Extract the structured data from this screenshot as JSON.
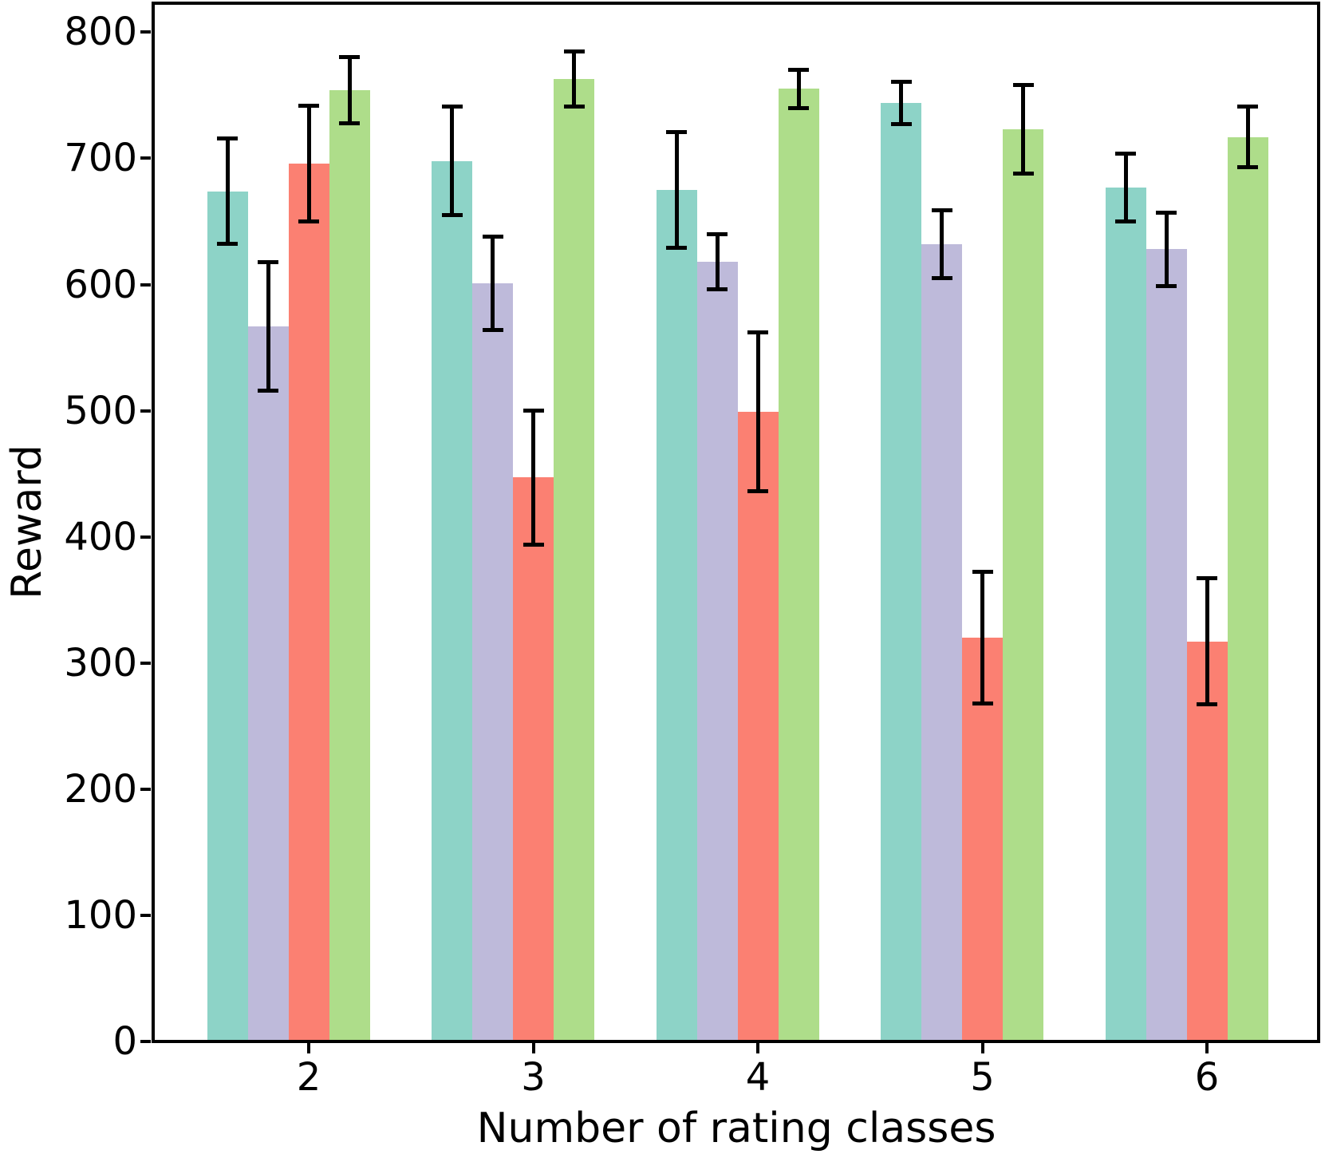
{
  "chart_data": {
    "type": "bar",
    "title": "",
    "xlabel": "Number of rating classes",
    "ylabel": "Reward",
    "categories": [
      "2",
      "3",
      "4",
      "5",
      "6"
    ],
    "y_ticks": [
      0,
      100,
      200,
      300,
      400,
      500,
      600,
      700,
      800
    ],
    "ylim": [
      0,
      823
    ],
    "grid": false,
    "legend": "none",
    "background_color": "#ffffff",
    "spine_color": "#000000",
    "error_bar_color": "#000000",
    "series": [
      {
        "name": "teal",
        "color": "#8dd3c7",
        "values": [
          674,
          698,
          675,
          744,
          677
        ],
        "errors": [
          42,
          43,
          46,
          17,
          27
        ]
      },
      {
        "name": "lavender",
        "color": "#bebada",
        "values": [
          567,
          601,
          618,
          632,
          628
        ],
        "errors": [
          51,
          37,
          22,
          27,
          29
        ]
      },
      {
        "name": "salmon",
        "color": "#fb8072",
        "values": [
          696,
          447,
          499,
          320,
          317
        ],
        "errors": [
          46,
          53,
          63,
          52,
          50
        ]
      },
      {
        "name": "green",
        "color": "#aedd8a",
        "values": [
          754,
          763,
          755,
          723,
          717
        ],
        "errors": [
          26,
          22,
          15,
          35,
          24
        ]
      }
    ]
  }
}
